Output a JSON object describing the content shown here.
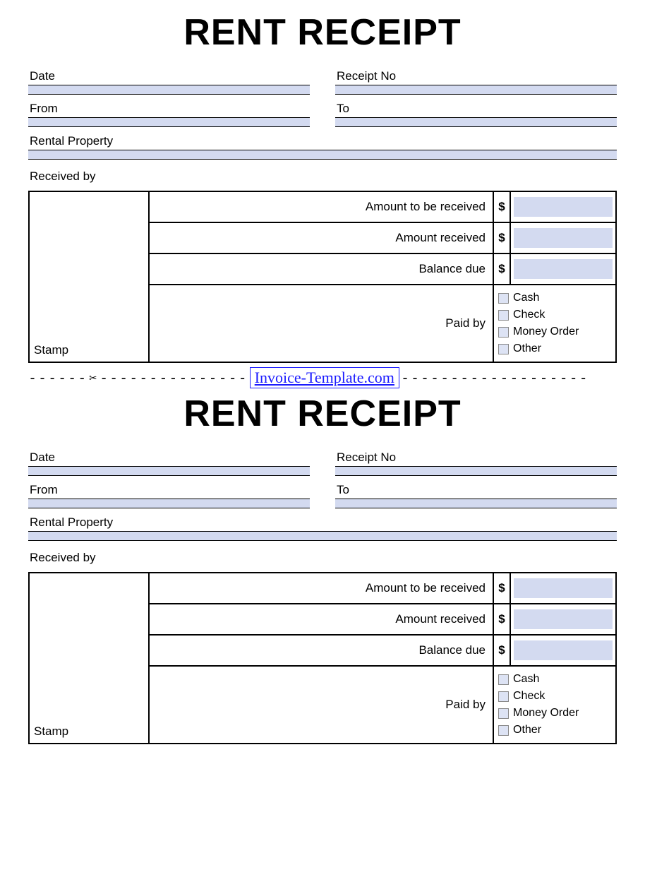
{
  "colors": {
    "fill": "#d3daf0",
    "checkbox_fill": "#dde3f4",
    "link": "#1a1aff",
    "border": "#000000",
    "background": "#ffffff"
  },
  "receipt": {
    "title": "RENT RECEIPT",
    "fields": {
      "date": "Date",
      "receipt_no": "Receipt No",
      "from": "From",
      "to": "To",
      "rental_property": "Rental Property",
      "received_by": "Received by",
      "stamp": "Stamp"
    },
    "table": {
      "amount_to_be_received": "Amount to be received",
      "amount_received": "Amount received",
      "balance_due": "Balance due",
      "paid_by": "Paid by",
      "currency": "$",
      "payment_options": [
        "Cash",
        "Check",
        "Money Order",
        "Other"
      ]
    }
  },
  "divider": {
    "link_text": "Invoice-Template.com"
  }
}
